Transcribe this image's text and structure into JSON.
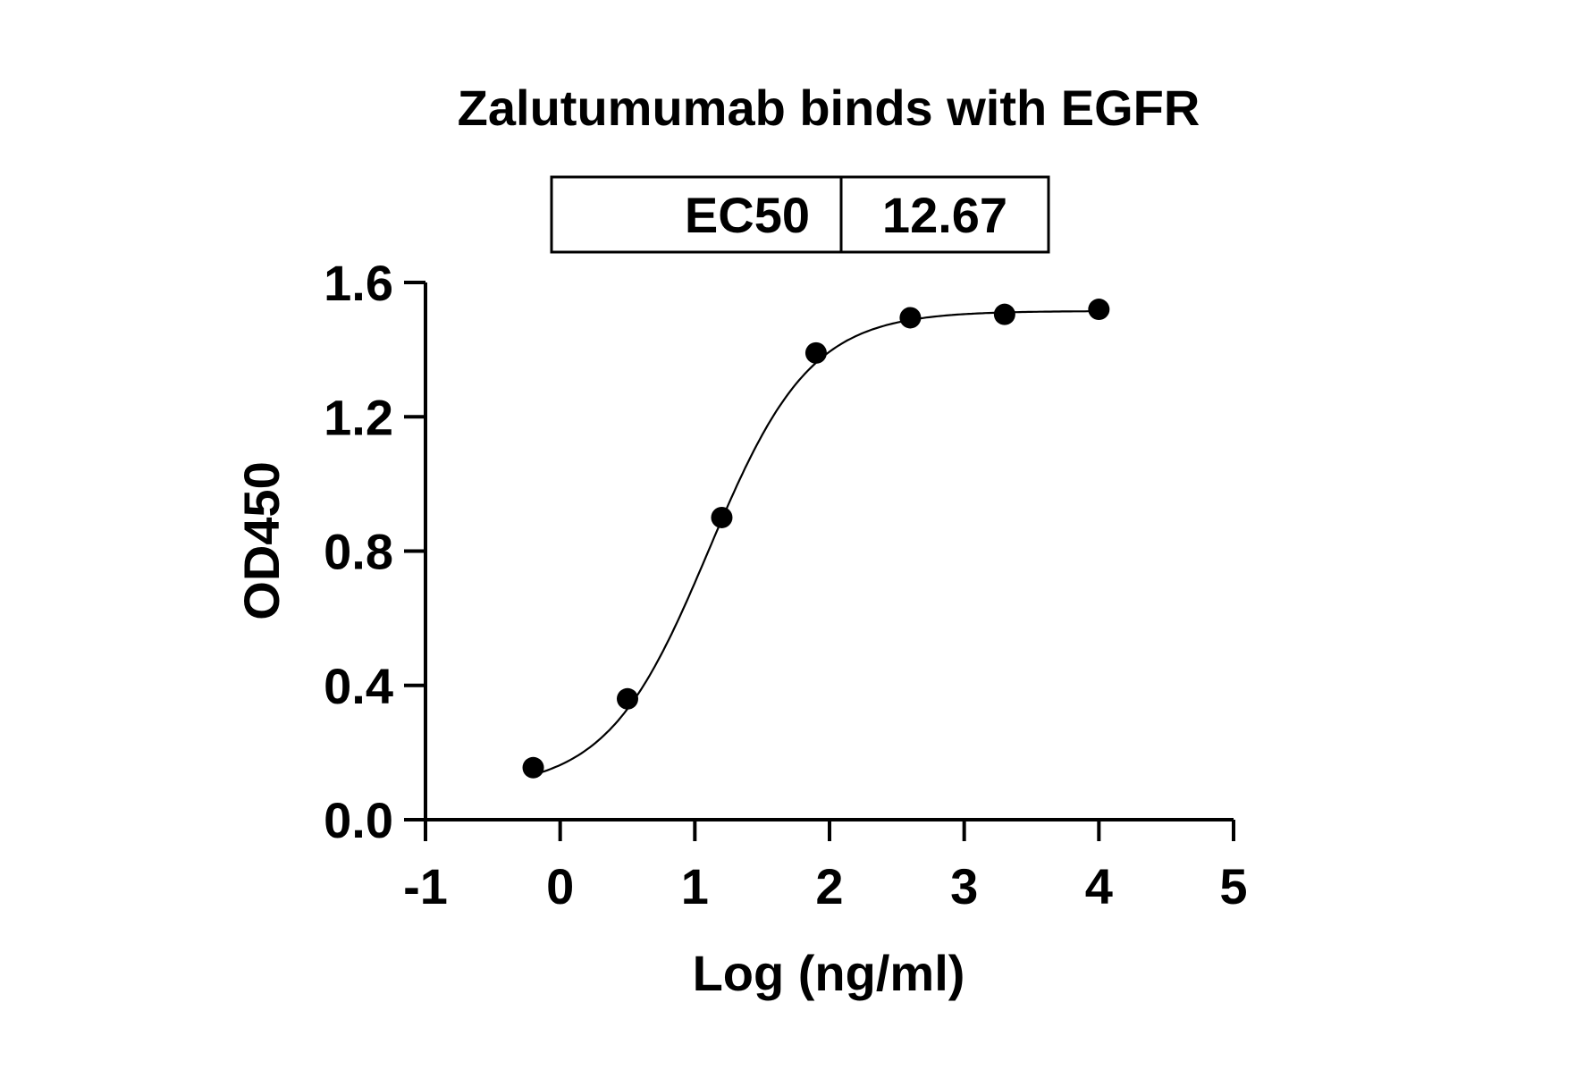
{
  "chart_data": {
    "type": "scatter",
    "title": "Zalutumumab binds with EGFR",
    "xlabel": "Log (ng/ml)",
    "ylabel": "OD450",
    "xlim": [
      -1,
      5
    ],
    "ylim": [
      0,
      1.6
    ],
    "xticks": [
      "-1",
      "0",
      "1",
      "2",
      "3",
      "4",
      "5"
    ],
    "yticks": [
      "0.0",
      "0.4",
      "0.8",
      "1.2",
      "1.6"
    ],
    "grid": false,
    "legend_table": {
      "label": "EC50",
      "value": "12.67"
    },
    "points": [
      {
        "x": -0.2,
        "y": 0.155
      },
      {
        "x": 0.5,
        "y": 0.36
      },
      {
        "x": 1.2,
        "y": 0.9
      },
      {
        "x": 1.9,
        "y": 1.39
      },
      {
        "x": 2.6,
        "y": 1.495
      },
      {
        "x": 3.3,
        "y": 1.505
      },
      {
        "x": 4.0,
        "y": 1.52
      }
    ],
    "fit": {
      "model": "4PL",
      "bottom": 0.09,
      "top": 1.515,
      "logEC50": 1.103,
      "hill": 1.15,
      "x_range": [
        -0.2,
        4.0
      ]
    },
    "colors": {
      "marker": "#000000",
      "line": "#000000"
    }
  }
}
